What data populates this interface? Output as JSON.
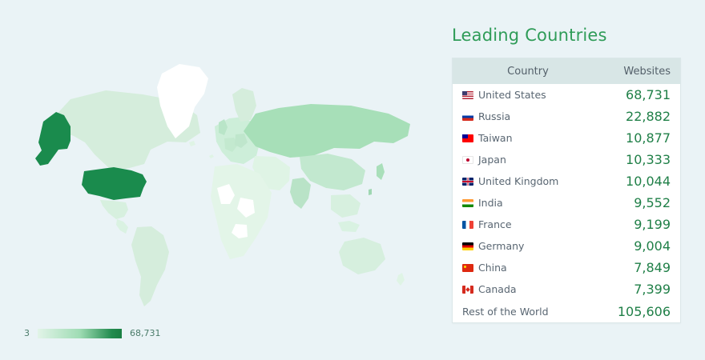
{
  "title": "Leading Countries",
  "table": {
    "headers": {
      "country": "Country",
      "websites": "Websites"
    },
    "rows": [
      {
        "country": "United States",
        "value": "68,731",
        "flag": "flag-us"
      },
      {
        "country": "Russia",
        "value": "22,882",
        "flag": "flag-ru"
      },
      {
        "country": "Taiwan",
        "value": "10,877",
        "flag": "flag-tw"
      },
      {
        "country": "Japan",
        "value": "10,333",
        "flag": "flag-jp"
      },
      {
        "country": "United Kingdom",
        "value": "10,044",
        "flag": "flag-gb"
      },
      {
        "country": "India",
        "value": "9,552",
        "flag": "flag-in"
      },
      {
        "country": "France",
        "value": "9,199",
        "flag": "flag-fr"
      },
      {
        "country": "Germany",
        "value": "9,004",
        "flag": "flag-de"
      },
      {
        "country": "China",
        "value": "7,849",
        "flag": "flag-cn"
      },
      {
        "country": "Canada",
        "value": "7,399",
        "flag": "flag-ca"
      }
    ],
    "rest": {
      "label": "Rest of the World",
      "value": "105,606"
    }
  },
  "legend": {
    "min": "3",
    "max": "68,731"
  },
  "colors": {
    "accent": "#1f7f47",
    "title": "#2f9c58",
    "light": "#d7f0df",
    "medium": "#a7dfb8",
    "dark": "#1a8b4d"
  }
}
